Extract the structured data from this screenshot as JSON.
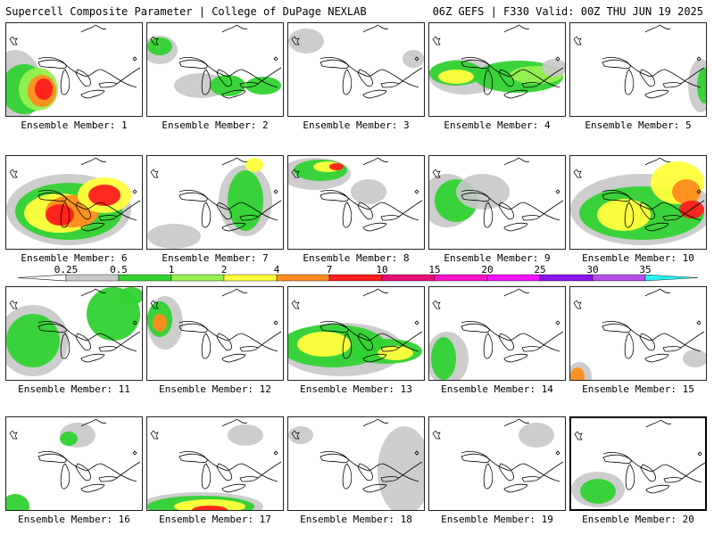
{
  "header": {
    "title": "Supercell Composite Parameter | College of DuPage NEXLAB",
    "run_info": "06Z GEFS | F330 Valid: 00Z THU JUN 19 2025"
  },
  "member_label_prefix": "Ensemble Member:",
  "members": [
    "1",
    "2",
    "3",
    "4",
    "5",
    "6",
    "7",
    "8",
    "9",
    "10",
    "11",
    "12",
    "13",
    "14",
    "15",
    "16",
    "17",
    "18",
    "19",
    "20"
  ],
  "legend": {
    "levels": [
      "0.25",
      "0.5",
      "1",
      "2",
      "4",
      "7",
      "10",
      "15",
      "20",
      "25",
      "30",
      "35"
    ],
    "colors": [
      "#c8c8c8",
      "#32d232",
      "#96f050",
      "#ffff3c",
      "#ff8c1e",
      "#ff1e1e",
      "#e60f78",
      "#ff14c8",
      "#f014ff",
      "#8c14f0",
      "#b450e6",
      "#28f0f0"
    ]
  },
  "selected_member": "20"
}
